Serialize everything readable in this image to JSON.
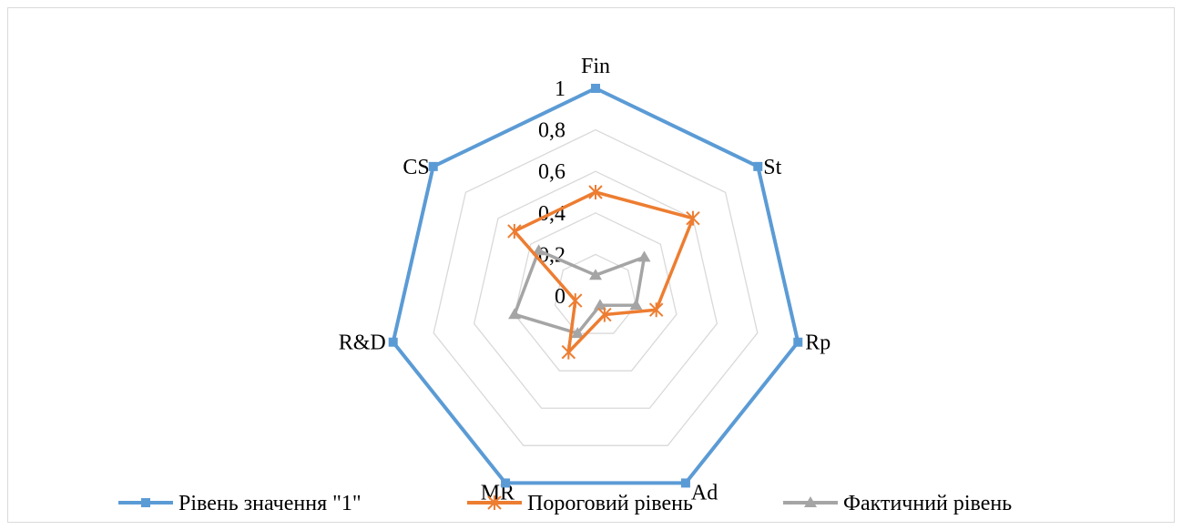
{
  "chart_data": {
    "type": "radar",
    "title": "",
    "categories": [
      "Fin",
      "St",
      "Rp",
      "Ad",
      "MR",
      "R&D",
      "CS"
    ],
    "radial_ticks": [
      "0",
      "0,2",
      "0,4",
      "0,6",
      "0,8",
      "1"
    ],
    "rlim": [
      0,
      1
    ],
    "grid": true,
    "legend_position": "bottom",
    "series": [
      {
        "name": "Рівень значення \"1\"",
        "color": "#5b9bd5",
        "marker": "square",
        "values": [
          1,
          1,
          1,
          1,
          1,
          1,
          1
        ]
      },
      {
        "name": "Пороговий рівень",
        "color": "#ed7d31",
        "marker": "star",
        "values": [
          0.5,
          0.6,
          0.3,
          0.1,
          0.3,
          0.1,
          0.5
        ]
      },
      {
        "name": "Фактичний рівень",
        "color": "#a5a5a5",
        "marker": "triangle",
        "values": [
          0.1,
          0.3,
          0.2,
          0.05,
          0.2,
          0.4,
          0.35
        ]
      }
    ]
  }
}
